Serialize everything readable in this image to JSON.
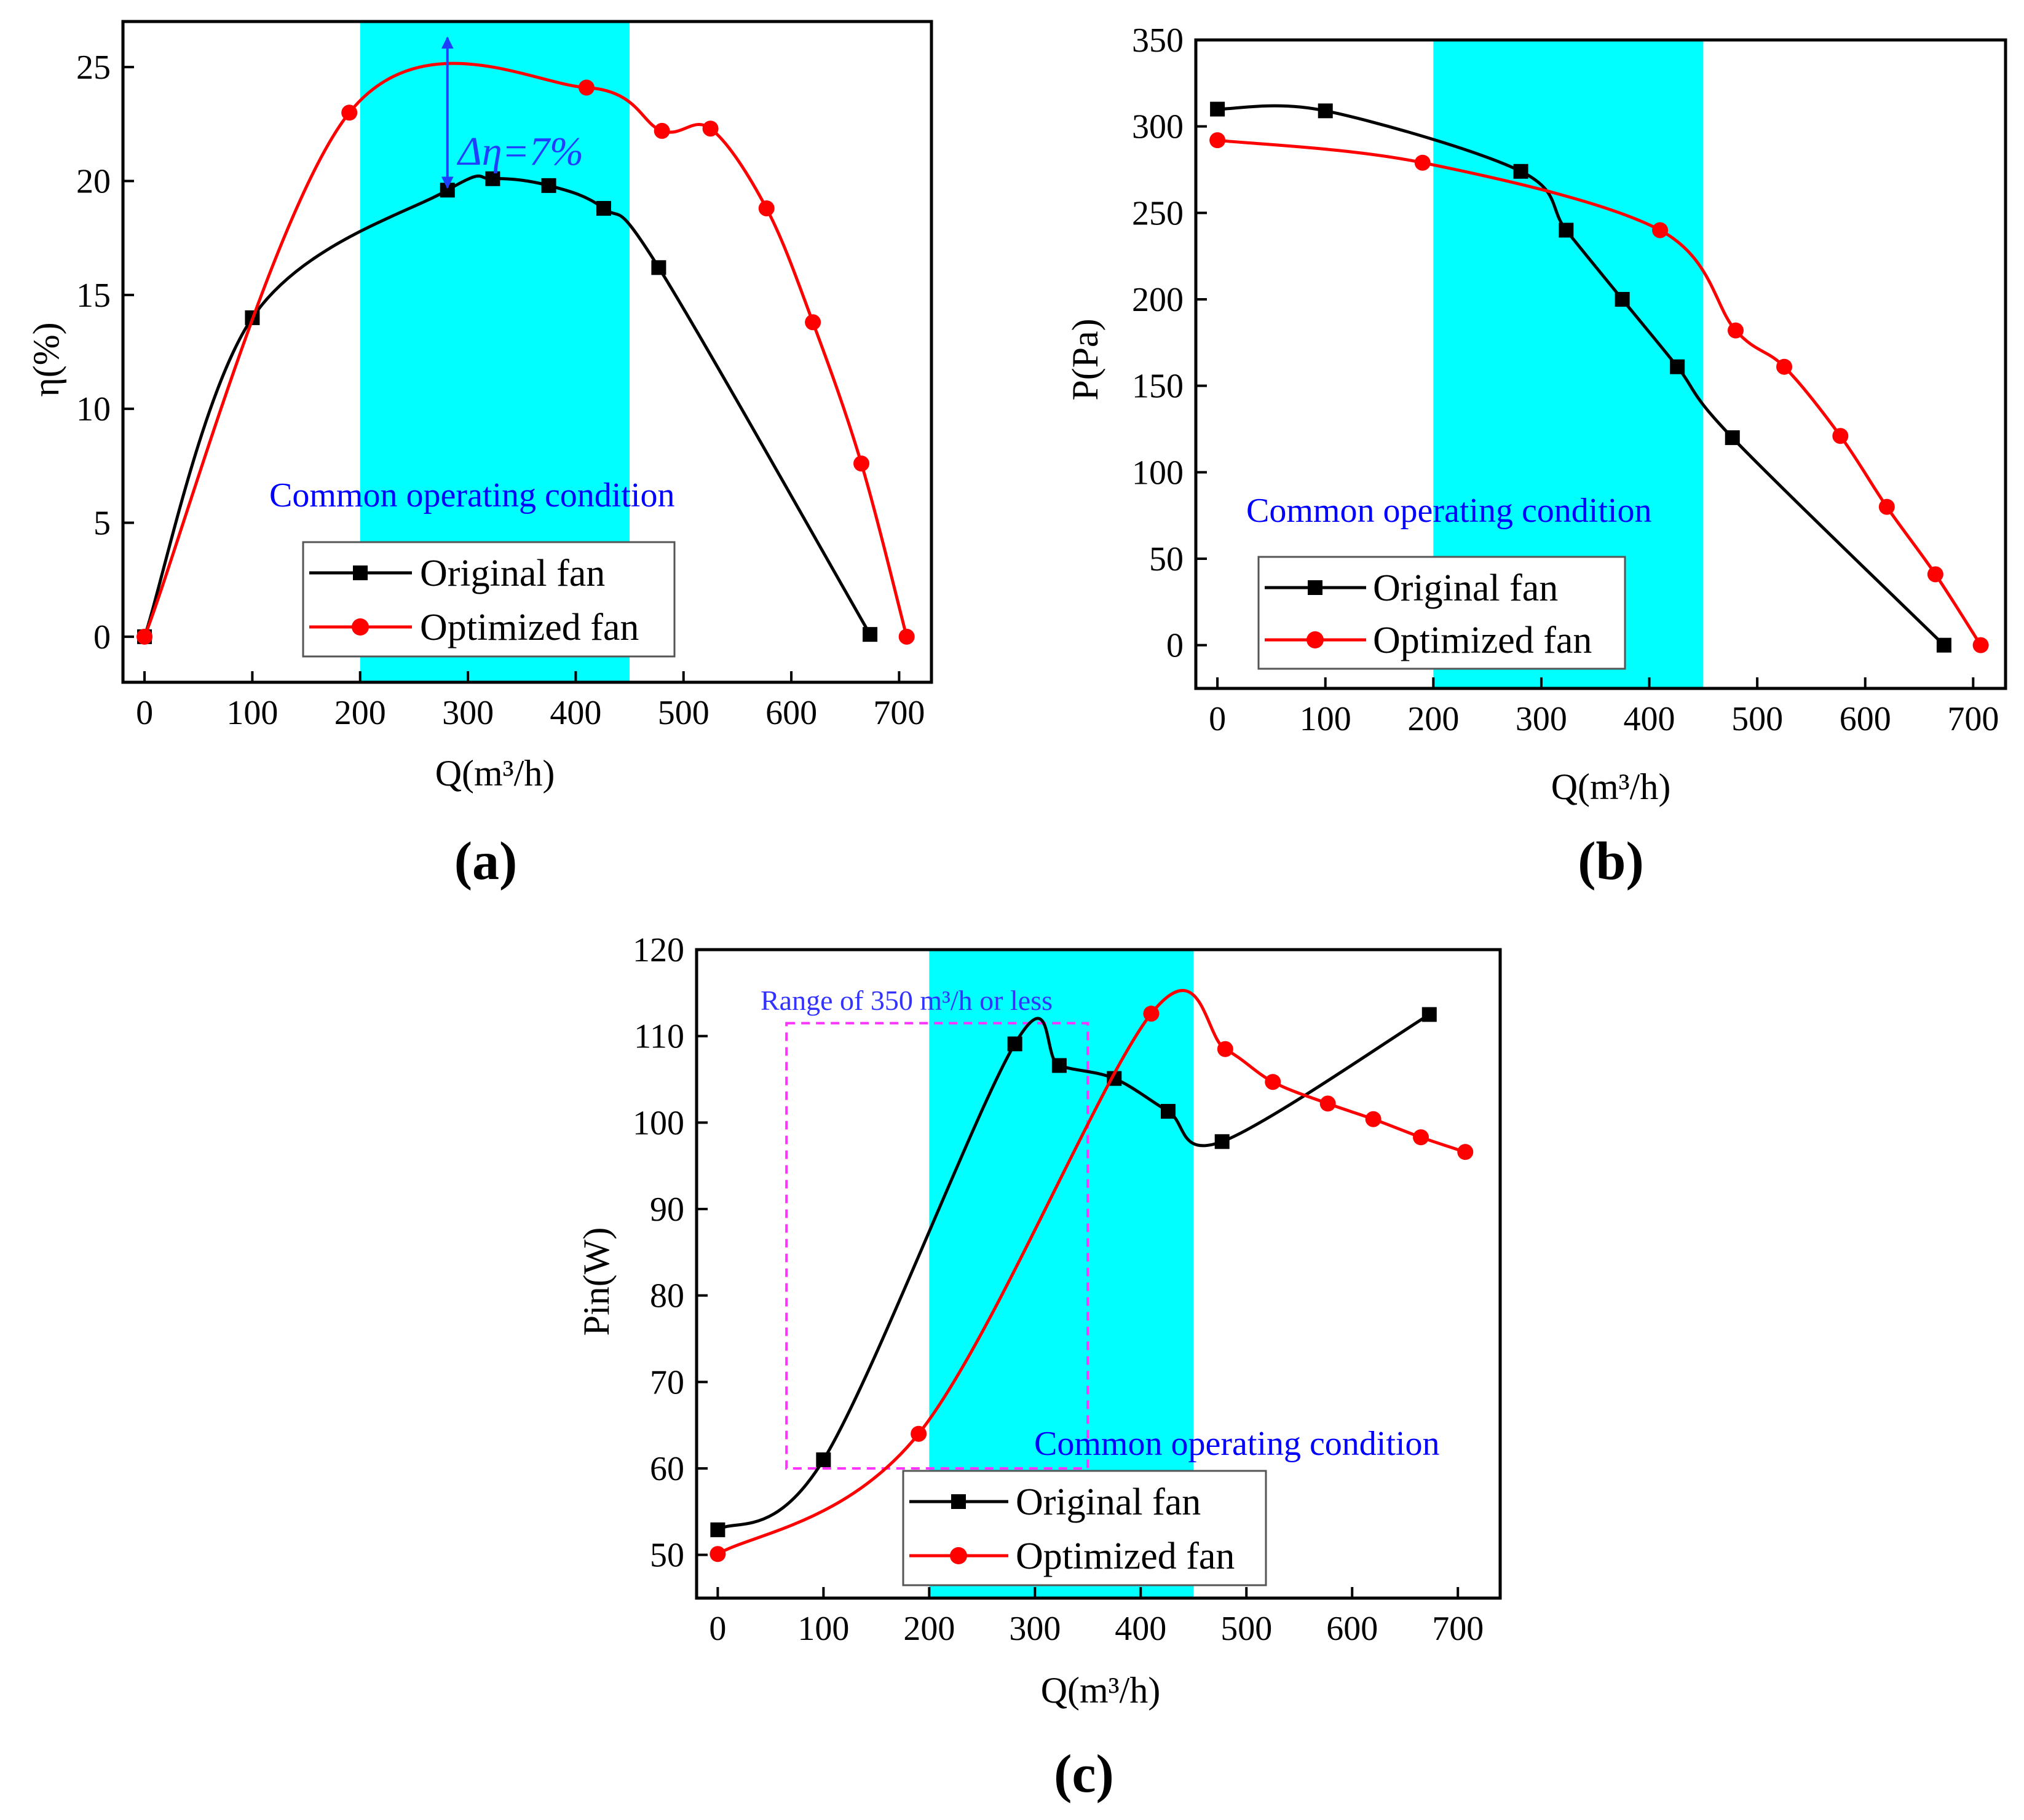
{
  "figure": {
    "colors": {
      "original": "#000000",
      "optimized": "#ff0000",
      "band": "#00ffff",
      "condition_text": "#0000ff",
      "range_box": "#ff33ff",
      "range_text": "#3333ff",
      "delta_arrow": "#1f3fff"
    },
    "legend": {
      "original": "Original fan",
      "optimized": "Optimized fan"
    },
    "panels": {
      "a": {
        "label": "(a)",
        "condition_label": "Common operating condition",
        "delta_label": "Δη=7%"
      },
      "b": {
        "label": "(b)",
        "condition_label": "Common operating condition"
      },
      "c": {
        "label": "(c)",
        "condition_label": "Common operating condition",
        "range_label": "Range of 350 m³/h or less"
      }
    }
  },
  "chart_data": [
    {
      "id": "a",
      "type": "line",
      "title": "",
      "xlabel": "Q(m³/h)",
      "ylabel": "η(%)",
      "xlim": [
        -20,
        730
      ],
      "ylim": [
        -2,
        27.0
      ],
      "xticks": [
        0,
        100,
        200,
        300,
        400,
        500,
        600,
        700
      ],
      "yticks": [
        0,
        5,
        10,
        15,
        20,
        25
      ],
      "band": [
        200,
        450
      ],
      "annotation": {
        "text": "Δη=7%",
        "x": 281,
        "y_from": 19.6,
        "y_to": 26.4
      },
      "series": [
        {
          "name": "Original fan",
          "marker": "square",
          "x": [
            0,
            100,
            281,
            323,
            375,
            426,
            477,
            673
          ],
          "y": [
            0,
            14.0,
            19.6,
            20.1,
            19.8,
            18.8,
            16.2,
            0.1
          ]
        },
        {
          "name": "Optimized fan",
          "marker": "circle",
          "x": [
            0,
            190,
            410,
            480,
            525,
            577,
            620,
            665,
            707
          ],
          "y": [
            0,
            23.0,
            24.1,
            22.2,
            22.3,
            18.8,
            13.8,
            7.6,
            0
          ]
        }
      ]
    },
    {
      "id": "b",
      "type": "line",
      "title": "",
      "xlabel": "Q(m³/h)",
      "ylabel": "P(Pa)",
      "xlim": [
        -20,
        730
      ],
      "ylim": [
        -25,
        350
      ],
      "xticks": [
        0,
        100,
        200,
        300,
        400,
        500,
        600,
        700
      ],
      "yticks": [
        0,
        50,
        100,
        150,
        200,
        250,
        300,
        350
      ],
      "band": [
        200,
        450
      ],
      "series": [
        {
          "name": "Original fan",
          "marker": "square",
          "x": [
            0,
            100,
            281,
            323,
            375,
            426,
            477,
            673
          ],
          "y": [
            310,
            309,
            274,
            240,
            200,
            161,
            120,
            0
          ]
        },
        {
          "name": "Optimized fan",
          "marker": "circle",
          "x": [
            0,
            190,
            410,
            480,
            525,
            577,
            620,
            665,
            707
          ],
          "y": [
            292,
            279,
            240,
            182,
            161,
            121,
            80,
            41,
            0
          ]
        }
      ]
    },
    {
      "id": "c",
      "type": "line",
      "title": "",
      "xlabel": "Q(m³/h)",
      "ylabel": "Pin(W)",
      "xlim": [
        -20,
        740
      ],
      "ylim": [
        45,
        120
      ],
      "xticks": [
        0,
        100,
        200,
        300,
        400,
        500,
        600,
        700
      ],
      "yticks": [
        50,
        60,
        70,
        80,
        90,
        100,
        110,
        120
      ],
      "band": [
        200,
        450
      ],
      "range_box": {
        "x": [
          65,
          350
        ],
        "y": [
          60,
          111.5
        ]
      },
      "series": [
        {
          "name": "Original fan",
          "marker": "square",
          "x": [
            0,
            100,
            281,
            323,
            375,
            426,
            477,
            673
          ],
          "y": [
            52.9,
            61.0,
            109.1,
            106.6,
            105.1,
            101.3,
            97.8,
            112.5
          ]
        },
        {
          "name": "Optimized fan",
          "marker": "circle",
          "x": [
            0,
            190,
            410,
            480,
            525,
            577,
            620,
            665,
            707
          ],
          "y": [
            50.1,
            64.0,
            112.6,
            108.5,
            104.7,
            102.2,
            100.4,
            98.3,
            96.6
          ]
        }
      ]
    }
  ]
}
